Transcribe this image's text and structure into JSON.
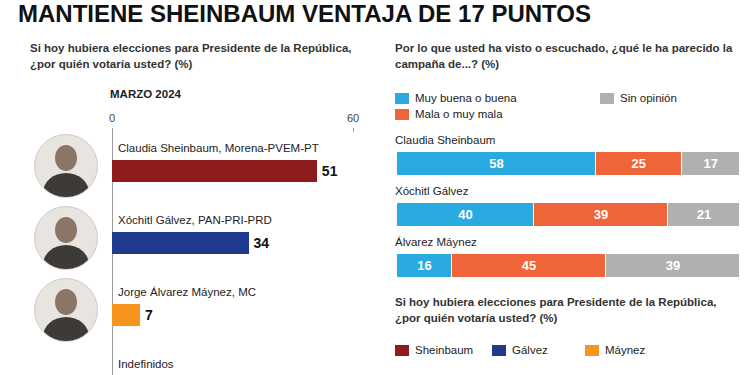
{
  "header": {
    "title": "MANTIENE SHEINBAUM VENTAJA DE 17 PUNTOS"
  },
  "chart_data": [
    {
      "type": "bar",
      "title": "Si hoy hubiera elecciones para Presidente de la República, ¿por quién votaría usted? (%)",
      "subtitle": "MARZO 2024",
      "orientation": "horizontal",
      "categories": [
        "Claudia Sheinbaum, Morena-PVEM-PT",
        "Xóchitl Gálvez, PAN-PRI-PRD",
        "Jorge Álvarez Máynez, MC",
        "Indefinidos"
      ],
      "values": [
        51,
        34,
        7,
        null
      ],
      "colors": [
        "#8e1c1c",
        "#1f3a8f",
        "#f7941d",
        null
      ],
      "xlim": [
        0,
        60
      ],
      "xticks": [
        0,
        60
      ],
      "data_labels": true
    },
    {
      "type": "bar",
      "title": "Por lo que usted ha visto o escuchado, ¿qué le ha parecido la campaña de...? (%)",
      "orientation": "horizontal",
      "stacked": true,
      "categories": [
        "Claudia Sheinbaum",
        "Xóchitl Gálvez",
        "Álvarez Máynez"
      ],
      "series": [
        {
          "name": "Muy buena o buena",
          "color": "#29abe2",
          "values": [
            58,
            40,
            16
          ]
        },
        {
          "name": "Mala o muy mala",
          "color": "#f0643a",
          "values": [
            25,
            39,
            45
          ]
        },
        {
          "name": "Sin opinión",
          "color": "#b0b0b0",
          "values": [
            17,
            21,
            39
          ]
        }
      ],
      "xlim": [
        0,
        100
      ],
      "tick_labels": false,
      "data_labels": true,
      "legend": "top"
    },
    {
      "type": "line",
      "title": "Si hoy hubiera elecciones para Presidente de la República, ¿por quién votaría usted? (%)",
      "categories": [],
      "series": [
        {
          "name": "Sheinbaum",
          "color": "#8e1c1c",
          "values": []
        },
        {
          "name": "Gálvez",
          "color": "#1f3a8f",
          "values": []
        },
        {
          "name": "Máynez",
          "color": "#f7941d",
          "values": []
        }
      ],
      "legend": "top"
    }
  ]
}
